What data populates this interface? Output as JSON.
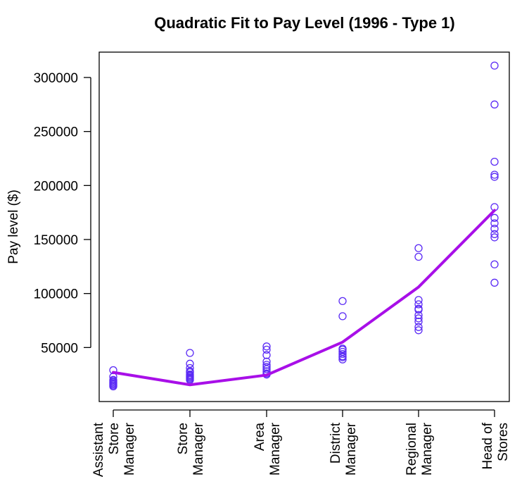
{
  "chart_data": {
    "type": "scatter",
    "title": "Quadratic Fit to Pay Level (1996 - Type 1)",
    "xlabel": "",
    "ylabel": "Pay level ($)",
    "ylim": [
      0,
      323000
    ],
    "yticks": [
      50000,
      100000,
      150000,
      200000,
      250000,
      300000
    ],
    "grid": false,
    "legend": "none",
    "point_color": "#5B2BF5",
    "line_color": "#A80FE8",
    "categories": [
      [
        "Assistant",
        "Store",
        "Manager"
      ],
      [
        "Store",
        "Manager"
      ],
      [
        "Area",
        "Manager"
      ],
      [
        "District",
        "Manager"
      ],
      [
        "Regional",
        "Manager"
      ],
      [
        "Head of",
        "Stores"
      ]
    ],
    "points": [
      [
        14000,
        15000,
        16000,
        17000,
        18000,
        19000,
        20000,
        23000,
        29000
      ],
      [
        20000,
        21000,
        22000,
        23000,
        24000,
        25000,
        27000,
        28000,
        31000,
        35000,
        45000
      ],
      [
        25000,
        26000,
        28000,
        30000,
        32000,
        34000,
        37000,
        43000,
        48000,
        51000
      ],
      [
        39000,
        41000,
        42000,
        44000,
        46000,
        48000,
        49000,
        79000,
        93000
      ],
      [
        66000,
        69000,
        74000,
        77000,
        80000,
        85000,
        86000,
        90000,
        94000,
        134000,
        142000
      ],
      [
        110000,
        127000,
        152000,
        155000,
        160000,
        165000,
        170000,
        180000,
        208000,
        210000,
        222000,
        275000,
        311000
      ]
    ],
    "fit": [
      27000,
      15500,
      24500,
      55000,
      106000,
      177000
    ]
  }
}
